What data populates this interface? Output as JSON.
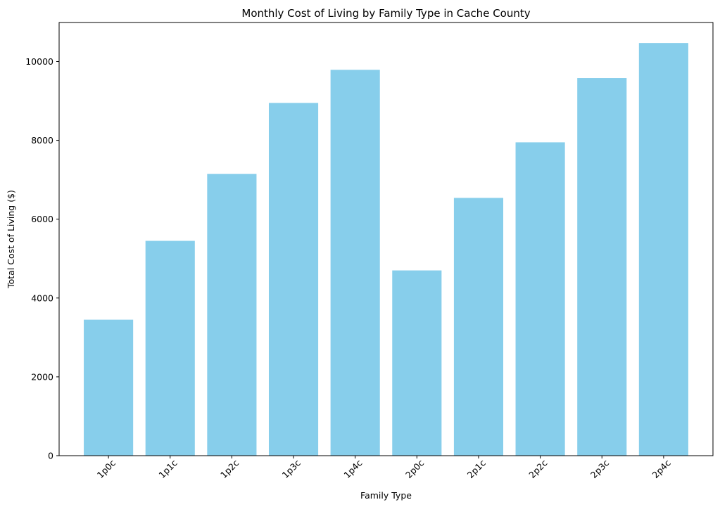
{
  "chart_data": {
    "type": "bar",
    "title": "Monthly Cost of Living by Family Type in Cache County",
    "xlabel": "Family Type",
    "ylabel": "Total Cost of Living ($)",
    "categories": [
      "1p0c",
      "1p1c",
      "1p2c",
      "1p3c",
      "1p4c",
      "2p0c",
      "2p1c",
      "2p2c",
      "2p3c",
      "2p4c"
    ],
    "values": [
      3450,
      5450,
      7150,
      8950,
      9790,
      4700,
      6540,
      7950,
      9580,
      10470
    ],
    "ylim": [
      0,
      10990
    ],
    "yticks": [
      0,
      2000,
      4000,
      6000,
      8000,
      10000
    ],
    "grid": false,
    "bar_color": "#87ceeb",
    "axis_color": "#000000"
  }
}
